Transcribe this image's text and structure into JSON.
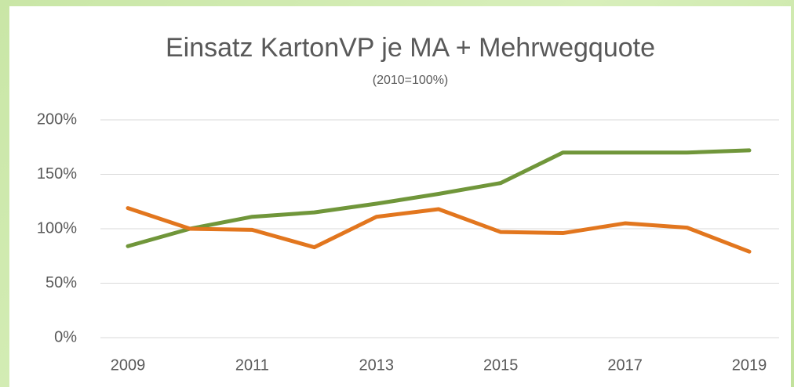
{
  "chart_data": {
    "type": "line",
    "title": "Einsatz KartonVP je MA + Mehrwegquote",
    "subtitle": "(2010=100%)",
    "x": [
      2009,
      2010,
      2011,
      2012,
      2013,
      2014,
      2015,
      2016,
      2017,
      2018,
      2019
    ],
    "xlim": [
      2009,
      2019
    ],
    "xticks": [
      2009,
      2011,
      2013,
      2015,
      2017,
      2019
    ],
    "series": [
      {
        "color": "#70963a",
        "values": [
          84,
          100,
          111,
          115,
          123,
          132,
          142,
          170,
          170,
          170,
          172
        ]
      },
      {
        "color": "#e2761e",
        "values": [
          119,
          100,
          99,
          83,
          111,
          118,
          97,
          96,
          105,
          101,
          79
        ]
      }
    ],
    "ylim": [
      0,
      200
    ],
    "yticks": [
      {
        "value": 0,
        "label": "0%"
      },
      {
        "value": 50,
        "label": "50%"
      },
      {
        "value": 100,
        "label": "100%"
      },
      {
        "value": 150,
        "label": "150%"
      },
      {
        "value": 200,
        "label": "200%"
      }
    ],
    "grid": true
  }
}
